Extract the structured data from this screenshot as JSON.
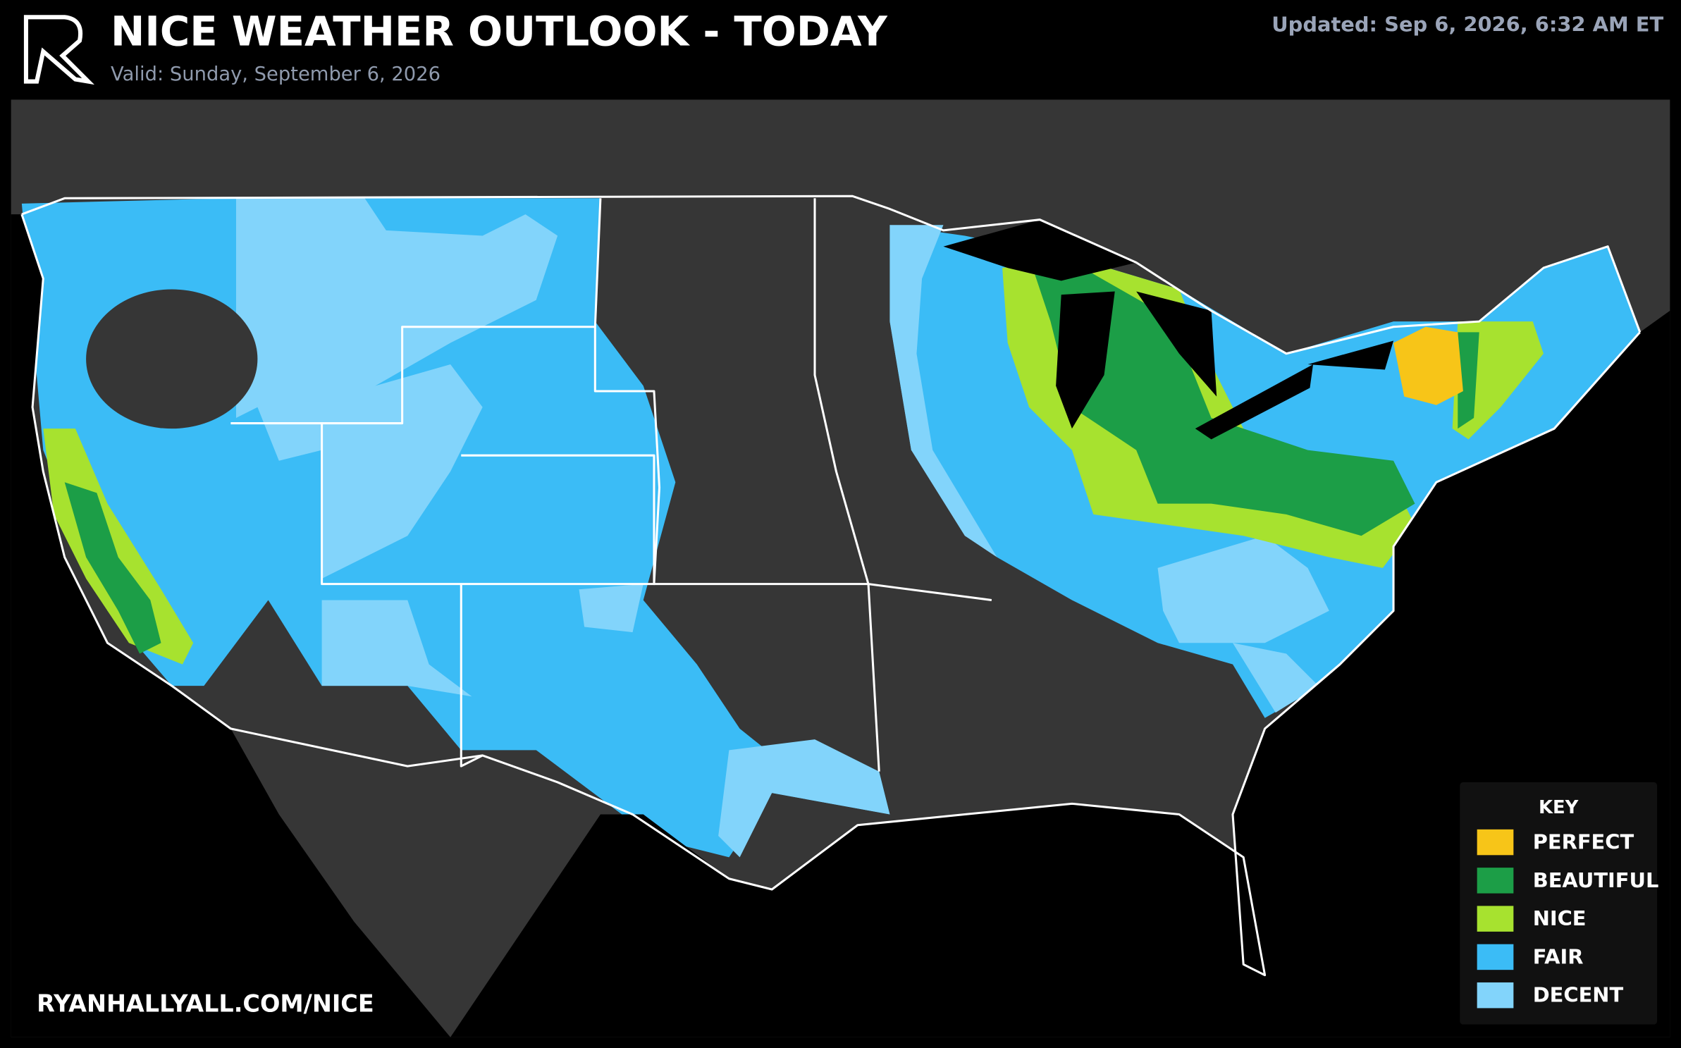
{
  "header": {
    "title": "NICE WEATHER OUTLOOK - TODAY",
    "subtitle": "Valid: Sunday, September 6, 2026",
    "updated": "Updated: Sep 6, 2026, 6:32 AM ET"
  },
  "footer": {
    "url": "RYANHALLYALL.COM/NICE"
  },
  "legend": {
    "title": "KEY",
    "items": [
      {
        "label": "PERFECT",
        "color": "#f7c518"
      },
      {
        "label": "BEAUTIFUL",
        "color": "#1c9e47"
      },
      {
        "label": "NICE",
        "color": "#a7e22f"
      },
      {
        "label": "FAIR",
        "color": "#3bbcf6"
      },
      {
        "label": "DECENT",
        "color": "#82d4fb"
      }
    ]
  }
}
